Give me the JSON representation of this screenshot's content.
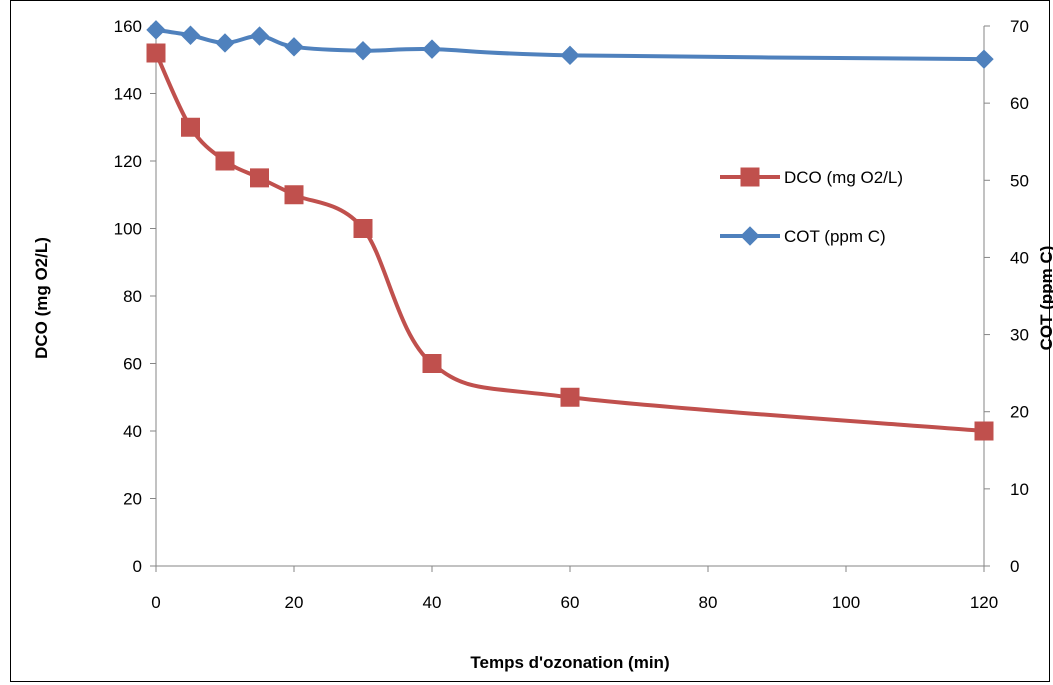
{
  "chart_data": {
    "type": "line",
    "xlabel": "Temps d'ozonation (min)",
    "ylabel": "DCO (mg O2/L)",
    "y2label": "COT (ppm C)",
    "xlim": [
      0,
      120
    ],
    "ylim": [
      0,
      160
    ],
    "y2lim": [
      0,
      70
    ],
    "x_ticks": [
      0,
      20,
      40,
      60,
      80,
      100,
      120
    ],
    "y_ticks": [
      0,
      20,
      40,
      60,
      80,
      100,
      120,
      140,
      160
    ],
    "y2_ticks": [
      0,
      10,
      20,
      30,
      40,
      50,
      60,
      70
    ],
    "grid": false,
    "legend_position": "right",
    "series": [
      {
        "name": "DCO (mg O2/L)",
        "axis": "left",
        "color": "#C0504D",
        "marker": "square",
        "x": [
          0,
          5,
          10,
          15,
          20,
          30,
          40,
          60,
          120
        ],
        "values": [
          152,
          130,
          120,
          115,
          110,
          100,
          60,
          50,
          40
        ]
      },
      {
        "name": "COT (ppm C)",
        "axis": "right",
        "color": "#4F81BD",
        "marker": "diamond",
        "x": [
          0,
          5,
          10,
          15,
          20,
          30,
          40,
          60,
          120
        ],
        "values": [
          69.5,
          68.8,
          67.8,
          68.7,
          67.3,
          66.8,
          67.0,
          66.2,
          65.7
        ]
      }
    ]
  }
}
